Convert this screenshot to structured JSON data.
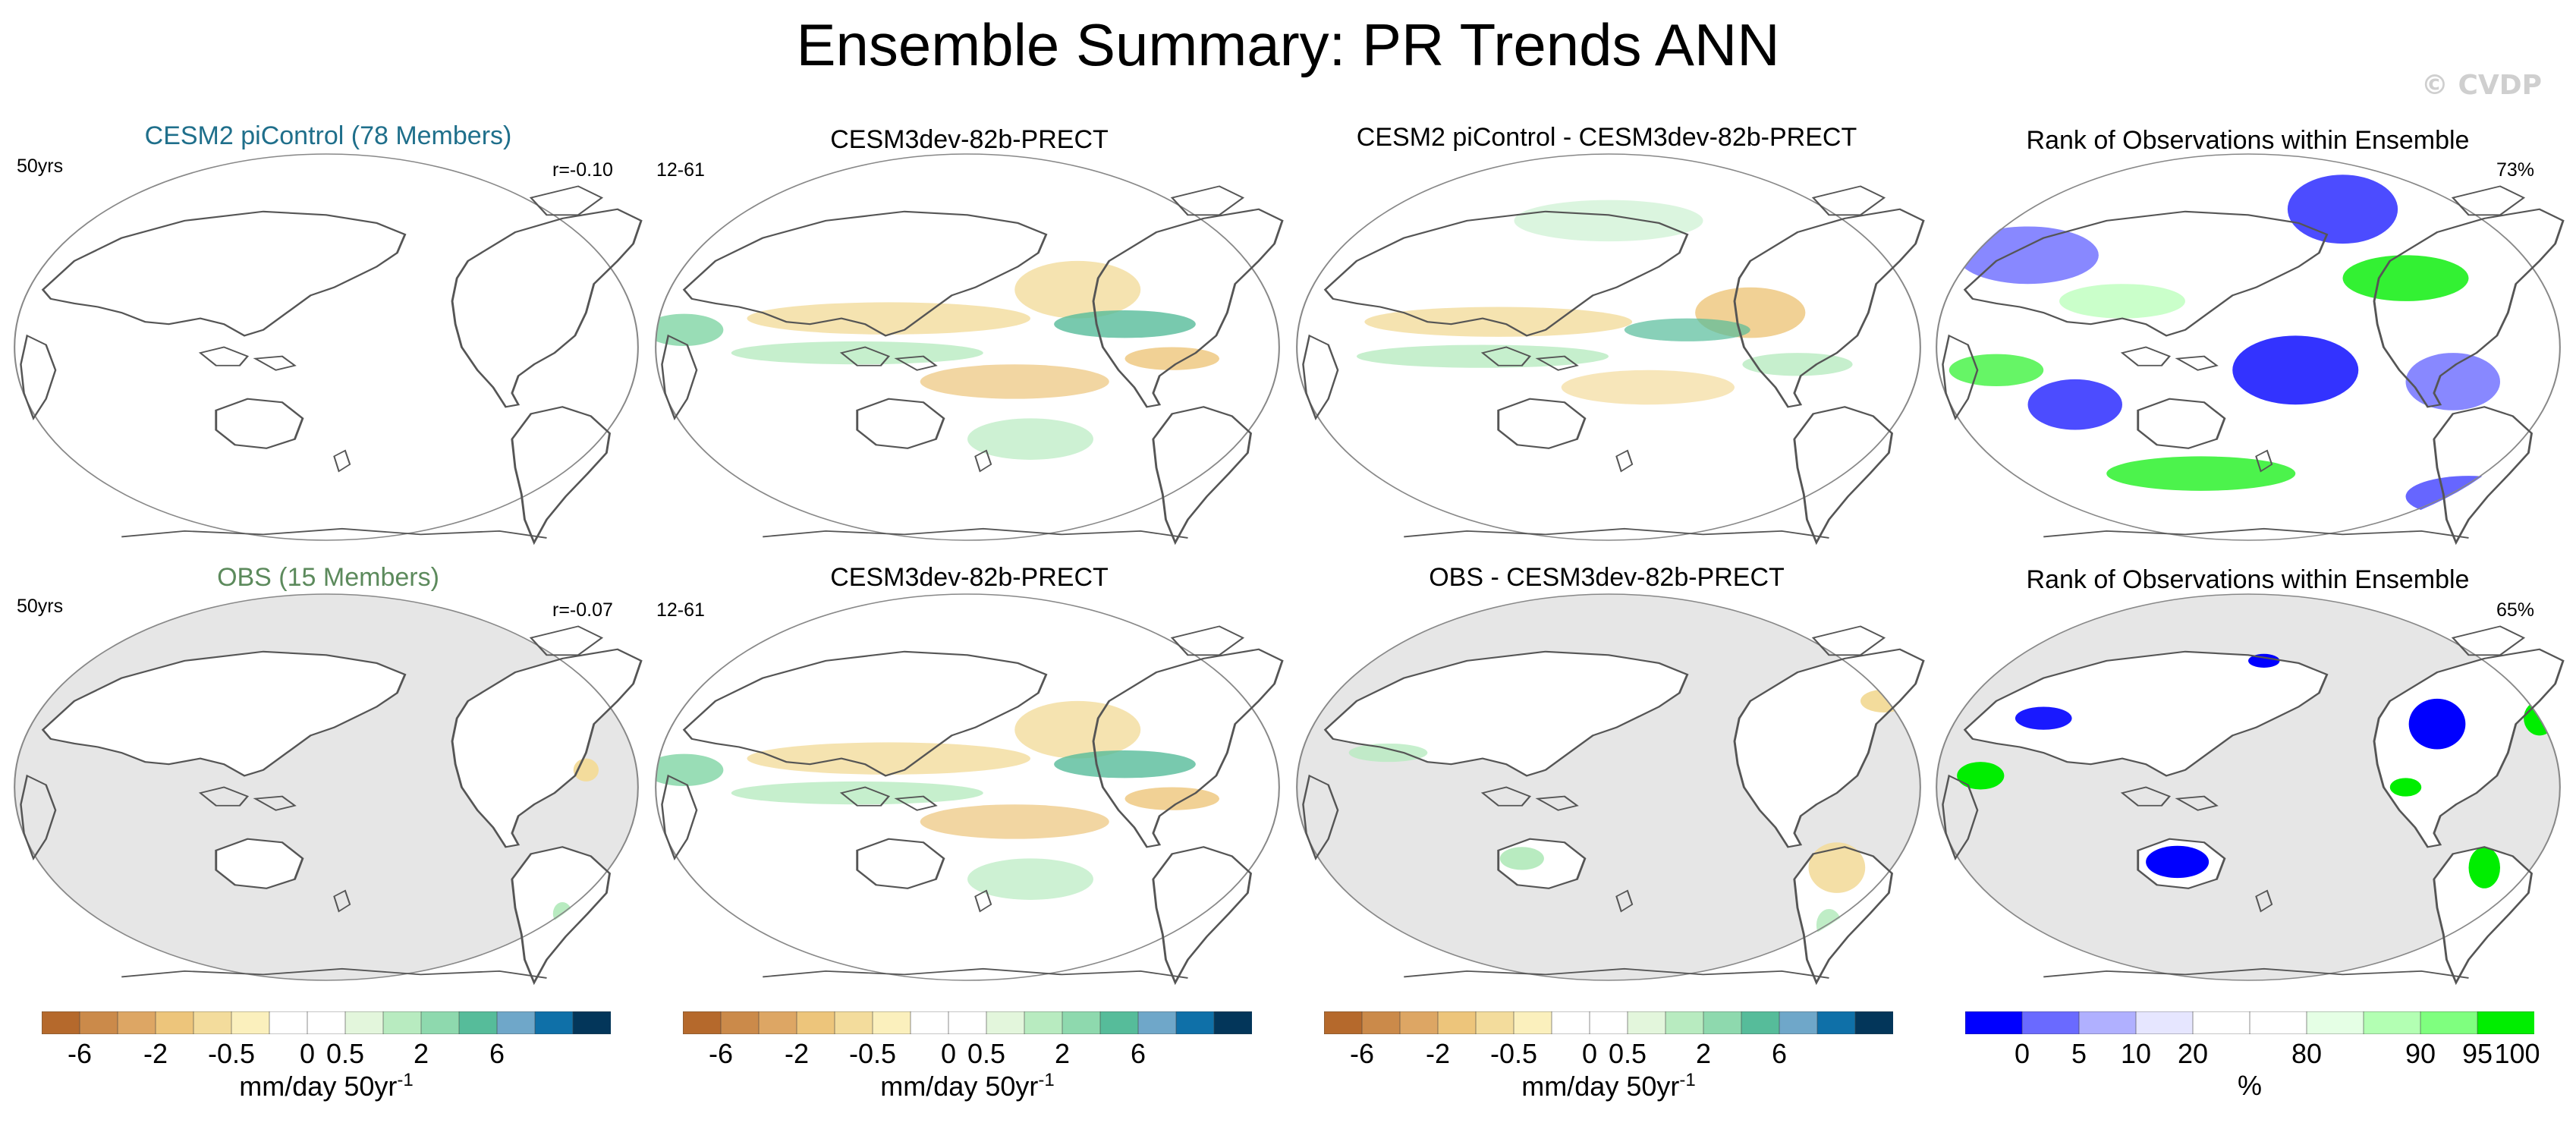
{
  "figure_title": "Ensemble Summary: PR Trends ANN",
  "credit": "© CVDP",
  "colors": {
    "land_masked": "#e6e6e6",
    "coast": "#555555",
    "obs_label": "#5c8a5c",
    "model_label": "#1f6f8b",
    "trend_palette": [
      "#b5692c",
      "#cb8a4a",
      "#dda664",
      "#edc57b",
      "#f3dc9c",
      "#fbf0bd",
      "#ffffff",
      "#ffffff",
      "#e3f6dc",
      "#b8ebc0",
      "#8ed9ae",
      "#56bc9a",
      "#6fa7c9",
      "#0f70a8",
      "#03365a"
    ],
    "rank_palette": [
      "#0000ff",
      "#6a6aff",
      "#b0b0ff",
      "#e6e6ff",
      "#ffffff",
      "#ffffff",
      "#e5ffe5",
      "#b3ffb3",
      "#7fff7f",
      "#00ee00"
    ]
  },
  "panels": {
    "p1": {
      "title": "CESM2 piControl (78 Members)",
      "left": "50yrs",
      "right": "r=-0.10"
    },
    "p2": {
      "title": "CESM3dev-82b-PRECT",
      "left": "12-61"
    },
    "p3": {
      "title": "CESM2 piControl - CESM3dev-82b-PRECT"
    },
    "p4": {
      "title": "Rank of Observations within Ensemble",
      "right": "73%"
    },
    "p5": {
      "title": "OBS (15 Members)",
      "left": "50yrs",
      "right": "r=-0.07"
    },
    "p6": {
      "title": "CESM3dev-82b-PRECT",
      "left": "12-61"
    },
    "p7": {
      "title": "OBS - CESM3dev-82b-PRECT"
    },
    "p8": {
      "title": "Rank of Observations within Ensemble",
      "right": "65%"
    }
  },
  "colorbars": {
    "trend": {
      "ticks": [
        "-6",
        "-2",
        "-0.5",
        "0",
        "0.5",
        "2",
        "6"
      ],
      "units": "mm/day 50yr",
      "units_sup": "-1"
    },
    "rank": {
      "ticks": [
        "0",
        "5",
        "10",
        "20",
        "80",
        "90",
        "95",
        "100"
      ],
      "units": "%"
    }
  },
  "chart_data": [
    {
      "type": "heatmap",
      "title": "CESM2 piControl (78 Members)",
      "subtitle_left": "50yrs",
      "subtitle_right": "r=-0.10",
      "projection": "Robinson, Pacific-centered",
      "variable": "PR trend",
      "units": "mm/day 50yr-1",
      "field": "near zero everywhere"
    },
    {
      "type": "heatmap",
      "title": "CESM3dev-82b-PRECT",
      "subtitle_left": "12-61",
      "projection": "Robinson, Pacific-centered",
      "variable": "PR trend",
      "units": "mm/day 50yr-1",
      "value_range": [
        -2,
        2
      ]
    },
    {
      "type": "heatmap",
      "title": "CESM2 piControl - CESM3dev-82b-PRECT",
      "projection": "Robinson, Pacific-centered",
      "variable": "PR trend difference",
      "units": "mm/day 50yr-1",
      "value_range": [
        -2,
        2
      ]
    },
    {
      "type": "heatmap",
      "title": "Rank of Observations within Ensemble",
      "subtitle_right": "73%",
      "projection": "Robinson, Pacific-centered",
      "variable": "rank",
      "units": "%",
      "value_range": [
        0,
        100
      ]
    },
    {
      "type": "heatmap",
      "title": "OBS (15 Members)",
      "subtitle_left": "50yrs",
      "subtitle_right": "r=-0.07",
      "projection": "Robinson, Pacific-centered",
      "variable": "PR trend",
      "units": "mm/day 50yr-1",
      "ocean_masked": true
    },
    {
      "type": "heatmap",
      "title": "CESM3dev-82b-PRECT",
      "subtitle_left": "12-61",
      "projection": "Robinson, Pacific-centered",
      "variable": "PR trend",
      "units": "mm/day 50yr-1",
      "value_range": [
        -2,
        2
      ]
    },
    {
      "type": "heatmap",
      "title": "OBS - CESM3dev-82b-PRECT",
      "projection": "Robinson, Pacific-centered",
      "variable": "PR trend difference",
      "units": "mm/day 50yr-1",
      "ocean_masked": true
    },
    {
      "type": "heatmap",
      "title": "Rank of Observations within Ensemble",
      "subtitle_right": "65%",
      "projection": "Robinson, Pacific-centered",
      "variable": "rank",
      "units": "%",
      "value_range": [
        0,
        100
      ],
      "ocean_masked": true
    },
    {
      "type": "colorbar",
      "levels": [
        "-6",
        "-2",
        "-0.5",
        "0",
        "0.5",
        "2",
        "6"
      ],
      "units": "mm/day 50yr-1"
    },
    {
      "type": "colorbar",
      "levels": [
        "0",
        "5",
        "10",
        "20",
        "80",
        "90",
        "95",
        "100"
      ],
      "units": "%"
    }
  ]
}
